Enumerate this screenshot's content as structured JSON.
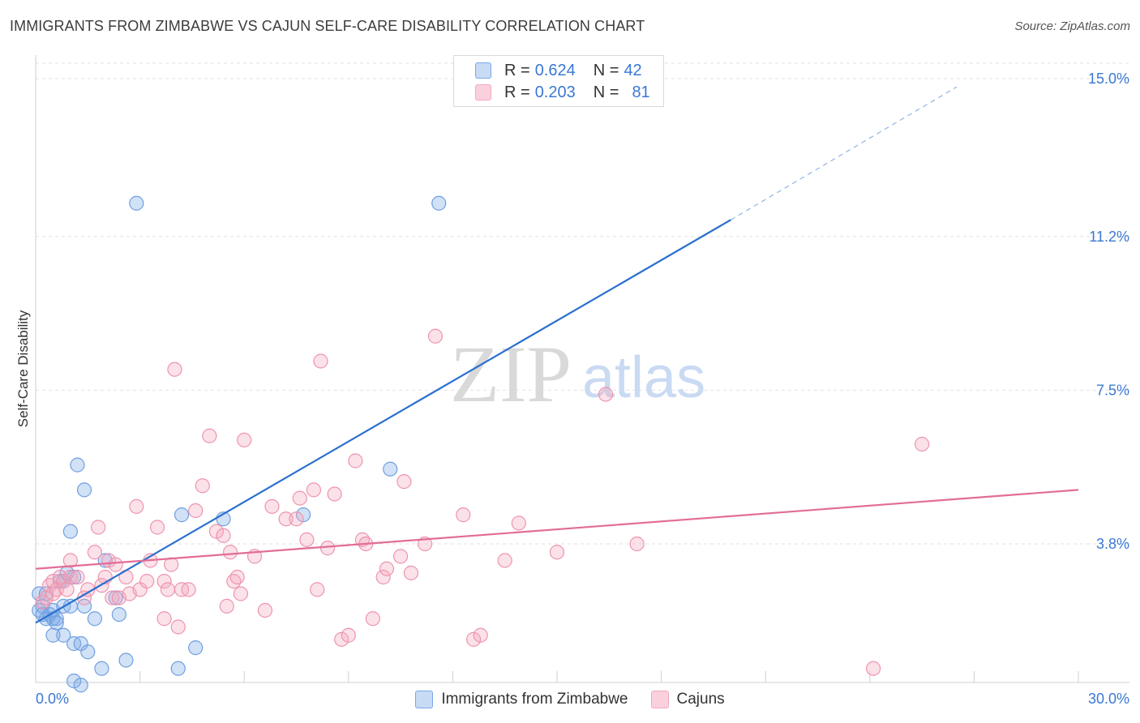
{
  "title": "IMMIGRANTS FROM ZIMBABWE VS CAJUN SELF-CARE DISABILITY CORRELATION CHART",
  "source": "Source: ZipAtlas.com",
  "watermark": {
    "zip": "ZIP",
    "atlas": "atlas"
  },
  "legend": {
    "r_label": "R =",
    "n_label": "N =",
    "entries": [
      {
        "r": "0.624",
        "n": "42"
      },
      {
        "r": "0.203",
        "n": "81"
      }
    ]
  },
  "chart_data": {
    "type": "scatter",
    "title": "IMMIGRANTS FROM ZIMBABWE VS CAJUN SELF-CARE DISABILITY CORRELATION CHART",
    "xlabel": "",
    "ylabel": "Self-Care Disability",
    "xlim": [
      0,
      30
    ],
    "ylim": [
      0,
      15.5
    ],
    "x_tick_labels": [
      "0.0%",
      "30.0%"
    ],
    "y_ticks": [
      3.8,
      7.5,
      11.2,
      15.0
    ],
    "y_tick_labels": [
      "3.8%",
      "7.5%",
      "11.2%",
      "15.0%"
    ],
    "grid": true,
    "legend_position": "top-center",
    "series": [
      {
        "name": "Immigrants from Zimbabwe",
        "color": "#7aa8e6",
        "line_color": "#2a70cf",
        "trend": {
          "x0": 0,
          "y0": 1.9,
          "x1": 20,
          "y1": 11.6,
          "dash_to_x": 26.5,
          "dash_to_y": 14.8
        },
        "points": [
          [
            0.1,
            2.6
          ],
          [
            0.1,
            2.2
          ],
          [
            0.2,
            2.3
          ],
          [
            0.3,
            2.0
          ],
          [
            0.3,
            2.6
          ],
          [
            0.4,
            2.1
          ],
          [
            0.5,
            2.0
          ],
          [
            0.5,
            2.2
          ],
          [
            0.5,
            1.6
          ],
          [
            0.6,
            2.0
          ],
          [
            0.6,
            1.9
          ],
          [
            0.7,
            2.9
          ],
          [
            0.8,
            2.9
          ],
          [
            0.8,
            1.6
          ],
          [
            0.8,
            2.3
          ],
          [
            0.9,
            3.1
          ],
          [
            1.0,
            2.3
          ],
          [
            1.0,
            4.1
          ],
          [
            1.1,
            3.0
          ],
          [
            1.1,
            1.4
          ],
          [
            1.1,
            0.5
          ],
          [
            1.2,
            5.7
          ],
          [
            1.3,
            0.4
          ],
          [
            1.3,
            1.4
          ],
          [
            1.4,
            2.3
          ],
          [
            1.4,
            5.1
          ],
          [
            1.5,
            1.2
          ],
          [
            1.7,
            2.0
          ],
          [
            1.9,
            0.8
          ],
          [
            2.0,
            3.4
          ],
          [
            2.3,
            2.5
          ],
          [
            2.4,
            2.1
          ],
          [
            2.6,
            1.0
          ],
          [
            2.9,
            12.0
          ],
          [
            4.1,
            0.8
          ],
          [
            4.2,
            4.5
          ],
          [
            4.6,
            1.3
          ],
          [
            5.4,
            4.4
          ],
          [
            7.7,
            4.5
          ],
          [
            10.2,
            5.6
          ],
          [
            11.6,
            12.0
          ],
          [
            0.2,
            2.1
          ]
        ]
      },
      {
        "name": "Cajuns",
        "color": "#f4a9be",
        "line_color": "#e26d97",
        "trend": {
          "x0": 0,
          "y0": 3.2,
          "x1": 30,
          "y1": 5.1
        },
        "points": [
          [
            0.2,
            2.4
          ],
          [
            0.3,
            2.5
          ],
          [
            0.4,
            2.8
          ],
          [
            0.5,
            2.9
          ],
          [
            0.5,
            2.6
          ],
          [
            0.6,
            2.7
          ],
          [
            0.7,
            3.0
          ],
          [
            0.8,
            2.9
          ],
          [
            0.9,
            2.7
          ],
          [
            1.0,
            3.0
          ],
          [
            1.0,
            3.4
          ],
          [
            1.2,
            3.0
          ],
          [
            1.4,
            2.5
          ],
          [
            1.5,
            2.7
          ],
          [
            1.7,
            3.6
          ],
          [
            1.8,
            4.2
          ],
          [
            1.9,
            2.8
          ],
          [
            2.0,
            3.0
          ],
          [
            2.1,
            3.4
          ],
          [
            2.2,
            2.5
          ],
          [
            2.3,
            3.3
          ],
          [
            2.4,
            2.5
          ],
          [
            2.6,
            3.0
          ],
          [
            2.7,
            2.6
          ],
          [
            2.9,
            4.7
          ],
          [
            3.0,
            2.7
          ],
          [
            3.2,
            2.9
          ],
          [
            3.3,
            3.4
          ],
          [
            3.5,
            4.2
          ],
          [
            3.7,
            2.0
          ],
          [
            3.7,
            2.9
          ],
          [
            3.8,
            2.7
          ],
          [
            3.9,
            3.3
          ],
          [
            4.0,
            8.0
          ],
          [
            4.1,
            1.8
          ],
          [
            4.2,
            2.7
          ],
          [
            4.4,
            2.7
          ],
          [
            4.6,
            4.6
          ],
          [
            4.8,
            5.2
          ],
          [
            5.0,
            6.4
          ],
          [
            5.2,
            4.1
          ],
          [
            5.4,
            4.0
          ],
          [
            5.5,
            2.3
          ],
          [
            5.6,
            3.6
          ],
          [
            5.7,
            2.9
          ],
          [
            5.8,
            3.0
          ],
          [
            5.9,
            2.6
          ],
          [
            6.0,
            6.3
          ],
          [
            6.3,
            3.5
          ],
          [
            6.6,
            2.2
          ],
          [
            6.8,
            4.7
          ],
          [
            7.2,
            4.4
          ],
          [
            7.5,
            4.4
          ],
          [
            7.6,
            4.9
          ],
          [
            7.8,
            3.9
          ],
          [
            8.0,
            5.1
          ],
          [
            8.1,
            2.7
          ],
          [
            8.2,
            8.2
          ],
          [
            8.4,
            3.7
          ],
          [
            8.6,
            5.0
          ],
          [
            8.8,
            1.5
          ],
          [
            9.0,
            1.6
          ],
          [
            9.2,
            5.8
          ],
          [
            9.4,
            3.9
          ],
          [
            9.5,
            3.8
          ],
          [
            9.7,
            2.0
          ],
          [
            10.0,
            3.0
          ],
          [
            10.1,
            3.2
          ],
          [
            10.5,
            3.5
          ],
          [
            10.6,
            5.3
          ],
          [
            10.8,
            3.1
          ],
          [
            11.2,
            3.8
          ],
          [
            11.5,
            8.8
          ],
          [
            12.3,
            4.5
          ],
          [
            12.6,
            1.5
          ],
          [
            12.8,
            1.6
          ],
          [
            13.5,
            3.4
          ],
          [
            13.9,
            4.3
          ],
          [
            15.0,
            3.6
          ],
          [
            17.3,
            3.8
          ],
          [
            24.1,
            0.8
          ]
        ],
        "extra_points": [
          [
            16.4,
            7.4
          ],
          [
            25.5,
            6.2
          ]
        ]
      }
    ]
  }
}
